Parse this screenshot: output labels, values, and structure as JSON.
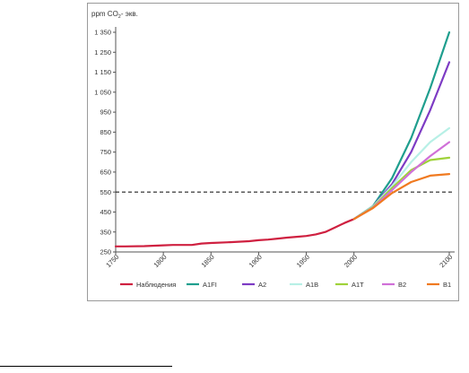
{
  "chart_data": {
    "type": "line",
    "ylabel_prefix": "ppm CO",
    "ylabel_sub": "2",
    "ylabel_suffix": "- экв.",
    "xlim": [
      1750,
      2100
    ],
    "ylim": [
      250,
      1350
    ],
    "x_ticks": [
      1750,
      1800,
      1850,
      1900,
      1950,
      2000,
      2100
    ],
    "y_ticks": [
      {
        "value": 250,
        "label": "250"
      },
      {
        "value": 350,
        "label": "350"
      },
      {
        "value": 450,
        "label": "450"
      },
      {
        "value": 550,
        "label": "550"
      },
      {
        "value": 650,
        "label": "650"
      },
      {
        "value": 750,
        "label": "750"
      },
      {
        "value": 850,
        "label": "850"
      },
      {
        "value": 950,
        "label": "950"
      },
      {
        "value": 1050,
        "label": "1 050"
      },
      {
        "value": 1150,
        "label": "1 150"
      },
      {
        "value": 1250,
        "label": "1 250"
      },
      {
        "value": 1350,
        "label": "1 350"
      }
    ],
    "reference_line": {
      "y": 550,
      "style": "dashed"
    },
    "legend_position": "bottom",
    "series": [
      {
        "name": "Наблюдения",
        "color": "#cf2040",
        "x": [
          1750,
          1760,
          1780,
          1800,
          1810,
          1830,
          1840,
          1850,
          1870,
          1890,
          1900,
          1910,
          1920,
          1930,
          1940,
          1950,
          1960,
          1970,
          1980,
          1990,
          2000
        ],
        "y": [
          278,
          278,
          279,
          283,
          285,
          285,
          292,
          295,
          299,
          304,
          309,
          312,
          317,
          322,
          326,
          330,
          338,
          350,
          372,
          395,
          415
        ]
      },
      {
        "name": "A1FI",
        "color": "#1f9e8e",
        "x": [
          2000,
          2020,
          2040,
          2060,
          2080,
          2100
        ],
        "y": [
          415,
          480,
          620,
          820,
          1070,
          1350
        ]
      },
      {
        "name": "A2",
        "color": "#7d3bc4",
        "x": [
          2000,
          2020,
          2040,
          2060,
          2080,
          2100
        ],
        "y": [
          415,
          478,
          590,
          750,
          960,
          1200
        ]
      },
      {
        "name": "A1B",
        "color": "#b7f0e6",
        "x": [
          2000,
          2020,
          2040,
          2060,
          2080,
          2100
        ],
        "y": [
          415,
          478,
          580,
          700,
          800,
          870
        ]
      },
      {
        "name": "A1T",
        "color": "#9fd23a",
        "x": [
          2000,
          2020,
          2040,
          2060,
          2080,
          2100
        ],
        "y": [
          415,
          475,
          570,
          660,
          710,
          722
        ]
      },
      {
        "name": "B2",
        "color": "#d070d8",
        "x": [
          2000,
          2020,
          2040,
          2060,
          2080,
          2100
        ],
        "y": [
          415,
          472,
          560,
          650,
          730,
          800
        ]
      },
      {
        "name": "B1",
        "color": "#f07a20",
        "x": [
          2000,
          2020,
          2040,
          2060,
          2080,
          2100
        ],
        "y": [
          415,
          470,
          545,
          600,
          632,
          640
        ]
      }
    ]
  }
}
